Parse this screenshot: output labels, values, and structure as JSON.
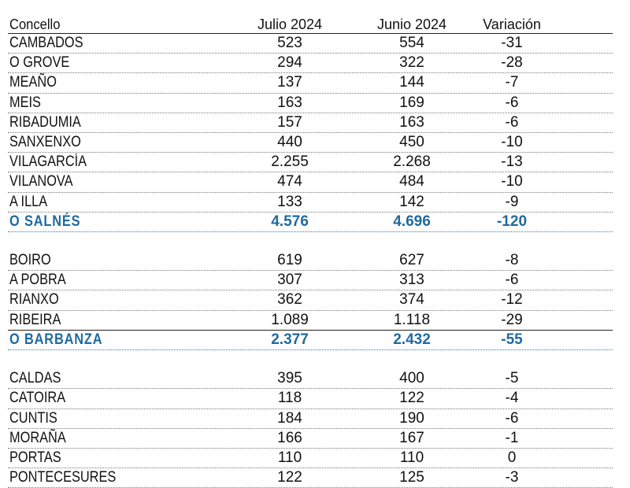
{
  "table": {
    "headers": [
      "Concello",
      "Julio 2024",
      "Junio 2024",
      "Variación"
    ],
    "groups": [
      {
        "rows": [
          [
            "CAMBADOS",
            "523",
            "554",
            "-31"
          ],
          [
            "O GROVE",
            "294",
            "322",
            "-28"
          ],
          [
            "MEAÑO",
            "137",
            "144",
            "-7"
          ],
          [
            "MEIS",
            "163",
            "169",
            "-6"
          ],
          [
            "RIBADUMIA",
            "157",
            "163",
            "-6"
          ],
          [
            "SANXENXO",
            "440",
            "450",
            "-10"
          ],
          [
            "VILAGARCÍA",
            "2.255",
            "2.268",
            "-13"
          ],
          [
            "VILANOVA",
            "474",
            "484",
            "-10"
          ],
          [
            "A ILLA",
            "133",
            "142",
            "-9"
          ]
        ],
        "total": [
          "O SALNÉS",
          "4.576",
          "4.696",
          "-120"
        ]
      },
      {
        "rows": [
          [
            "BOIRO",
            "619",
            "627",
            "-8"
          ],
          [
            "A POBRA",
            "307",
            "313",
            "-6"
          ],
          [
            "RIANXO",
            "362",
            "374",
            "-12"
          ],
          [
            "RIBEIRA",
            "1.089",
            "1.118",
            "-29"
          ]
        ],
        "total": [
          "O BARBANZA",
          "2.377",
          "2.432",
          "-55"
        ]
      },
      {
        "rows": [
          [
            "CALDAS",
            "395",
            "400",
            "-5"
          ],
          [
            "CATOIRA",
            "118",
            "122",
            "-4"
          ],
          [
            "CUNTIS",
            "184",
            "190",
            "-6"
          ],
          [
            "MORAÑA",
            "166",
            "167",
            "-1"
          ],
          [
            "PORTAS",
            "110",
            "110",
            "0"
          ],
          [
            "PONTECESURES",
            "122",
            "125",
            "-3"
          ]
        ]
      }
    ]
  },
  "colors": {
    "total_text": "#1f6aa0",
    "text": "#111111"
  }
}
